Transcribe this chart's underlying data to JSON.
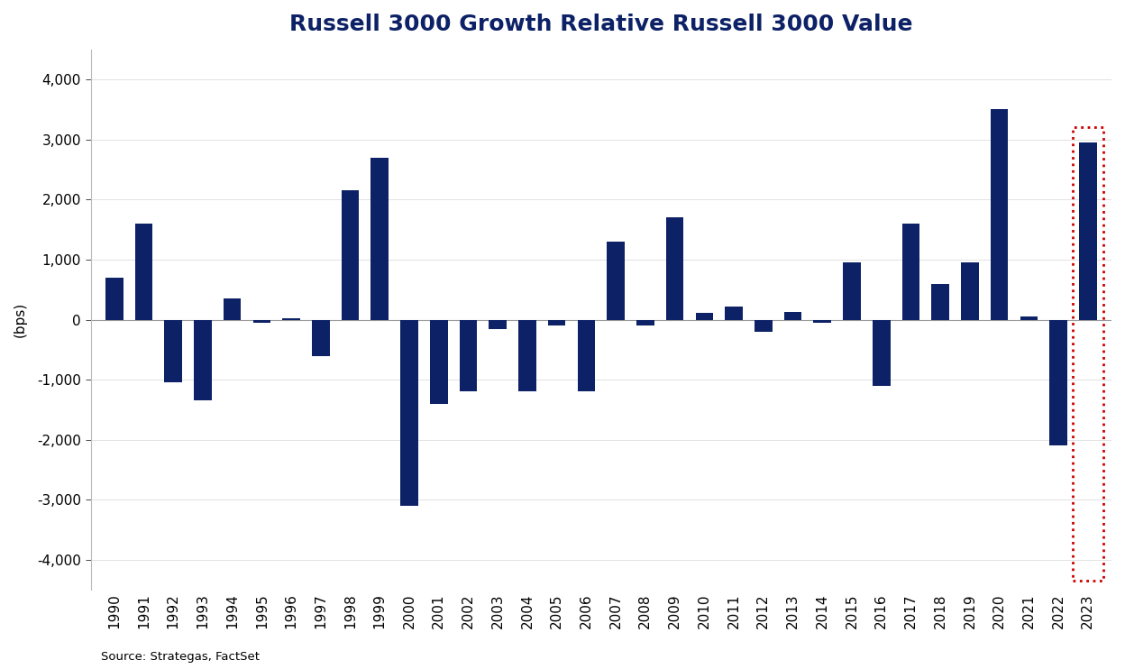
{
  "title": "Russell 3000 Growth Relative Russell 3000 Value",
  "ylabel": "(bps)",
  "source": "Source: Strategas, FactSet",
  "bar_color": "#0d2166",
  "highlight_box_color": "#cc0000",
  "years": [
    1990,
    1991,
    1992,
    1993,
    1994,
    1995,
    1996,
    1997,
    1998,
    1999,
    2000,
    2001,
    2002,
    2003,
    2004,
    2005,
    2006,
    2007,
    2008,
    2009,
    2010,
    2011,
    2012,
    2013,
    2014,
    2015,
    2016,
    2017,
    2018,
    2019,
    2020,
    2021,
    2022,
    2023
  ],
  "values": [
    700,
    1600,
    -1050,
    -1350,
    350,
    -50,
    30,
    -600,
    2150,
    2700,
    -3100,
    -1400,
    -1200,
    -150,
    -1200,
    -100,
    -1200,
    1300,
    -100,
    1700,
    120,
    220,
    -200,
    130,
    -50,
    950,
    -1100,
    1600,
    600,
    950,
    3500,
    50,
    -2100,
    2955
  ],
  "ylim": [
    -4500,
    4500
  ],
  "yticks": [
    -4000,
    -3000,
    -2000,
    -1000,
    0,
    1000,
    2000,
    3000,
    4000
  ],
  "highlight_year": 2023,
  "title_fontsize": 18,
  "axis_fontsize": 11,
  "title_color": "#0d2166"
}
